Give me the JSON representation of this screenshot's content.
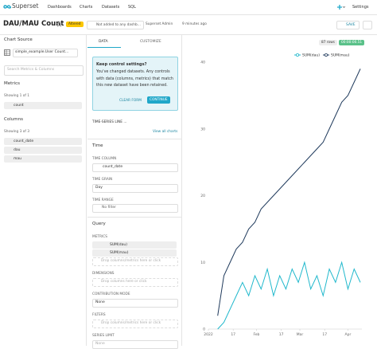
{
  "nav": {
    "brand": "Superset",
    "links": [
      "Dashboards",
      "Charts",
      "Datasets",
      "SQL"
    ],
    "settings": "Settings"
  },
  "header": {
    "title": "DAU/MAU Count",
    "badge": "Altered",
    "dashboards": "Not added to any dashb...",
    "owner": "Superset Admin",
    "modified": "9 minutes ago"
  },
  "source": {
    "heading": "Chart Source",
    "dataset": "simple_example.User Count...",
    "search": "Search Metrics & Columns",
    "metrics_heading": "Metrics",
    "metrics_count": "Showing 1 of 1",
    "metrics": [
      "count"
    ],
    "columns_heading": "Columns",
    "columns_count": "Showing 3 of 3",
    "columns": [
      "count_date",
      "dau",
      "mau"
    ]
  },
  "controls": {
    "tabs": [
      "DATA",
      "CUSTOMIZE"
    ],
    "alert": {
      "title": "Keep control settings?",
      "body": "You've changed datasets. Any controls with data (columns, metrics) that match this new dataset have been retained.",
      "clear": "CLEAR FORM",
      "continue": "CONTINUE"
    },
    "viz_type": "TIME-SERIES LINE ...",
    "view_all": "View all charts",
    "time": {
      "heading": "Time",
      "fields": [
        {
          "label": "TIME COLUMN",
          "value": "count_date"
        },
        {
          "label": "TIME GRAIN",
          "value": "Day"
        },
        {
          "label": "TIME RANGE",
          "value": "No filter"
        }
      ]
    },
    "query": {
      "heading": "Query",
      "metrics_label": "METRICS",
      "metrics": [
        "SUM(dau)",
        "SUM(mau)"
      ],
      "metrics_drop": "Drop columns/metrics here or click",
      "dimensions_label": "DIMENSIONS",
      "dimensions_drop": "Drop columns here or click",
      "contribution_label": "CONTRIBUTION MODE",
      "contribution": "None",
      "filters_label": "FILTERS",
      "filters_drop": "Drop columns/metrics here or click",
      "series_limit_label": "SERIES LIMIT",
      "series_limit": "None"
    }
  },
  "results": {
    "rows": "87 rows",
    "duration": "00:00:00.51",
    "save": "SAVE"
  },
  "chart": {
    "type": "line",
    "x": [
      6,
      10,
      14,
      18,
      22,
      26,
      30,
      34,
      38,
      42,
      46,
      50,
      54,
      58,
      62,
      66,
      70,
      74,
      78,
      82,
      86,
      90,
      94,
      98
    ],
    "series": [
      {
        "name": "SUM(dau)",
        "color": "#20b8cc",
        "values": [
          0,
          1,
          3,
          5,
          7,
          5,
          8,
          6,
          9,
          5,
          8,
          6,
          9,
          7,
          10,
          6,
          8,
          5,
          9,
          7,
          10,
          6,
          9,
          7
        ]
      },
      {
        "name": "SUM(mau)",
        "color": "#1f3a5c",
        "values": [
          2,
          8,
          10,
          12,
          13,
          15,
          16,
          18,
          19,
          20,
          21,
          22,
          23,
          24,
          25,
          26,
          27,
          28,
          30,
          32,
          34,
          35,
          37,
          39
        ]
      }
    ],
    "xlim": [
      0,
      99
    ],
    "xticks": [
      {
        "value": 0,
        "label": "2022"
      },
      {
        "value": 16,
        "label": "17"
      },
      {
        "value": 31,
        "label": "Feb"
      },
      {
        "value": 47,
        "label": "17"
      },
      {
        "value": 59,
        "label": "Mar"
      },
      {
        "value": 75,
        "label": "17"
      },
      {
        "value": 90,
        "label": "Apr"
      }
    ],
    "ylim": [
      0,
      40
    ],
    "yticks": [
      0,
      10,
      20,
      30,
      40
    ],
    "grid": false
  }
}
